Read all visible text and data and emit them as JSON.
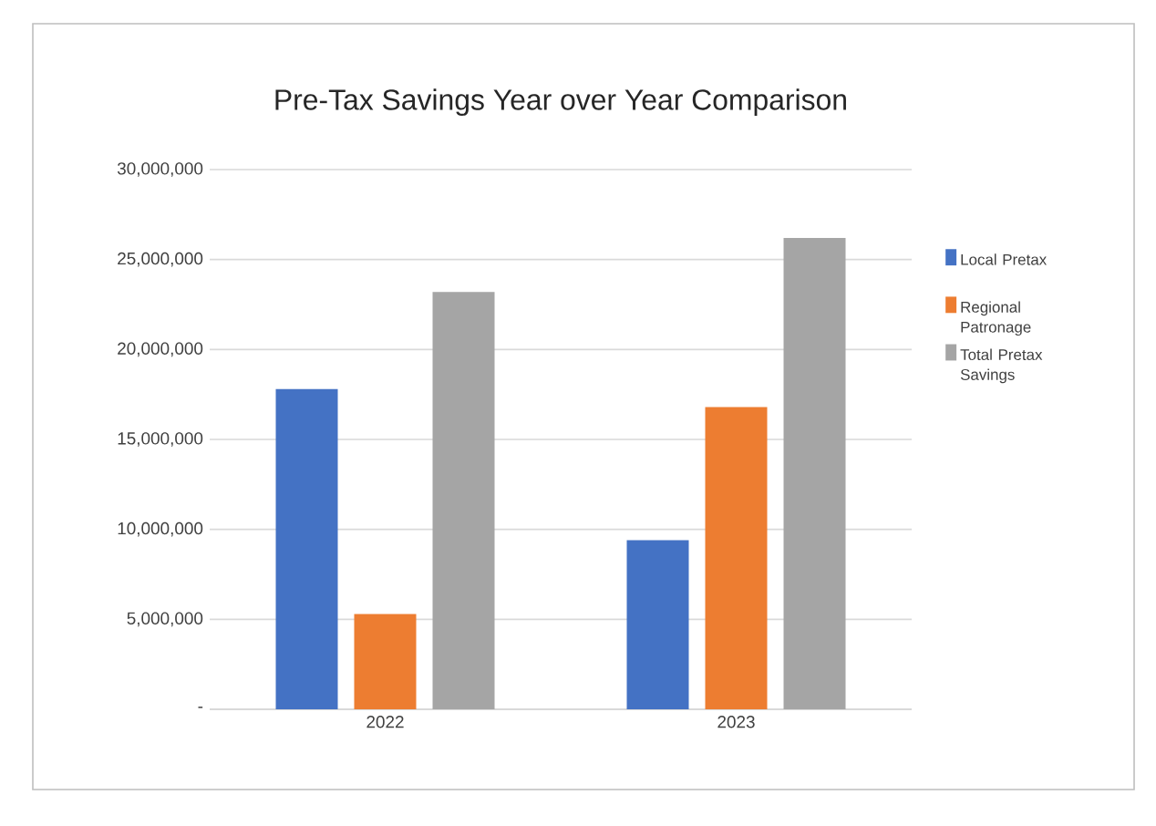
{
  "chart_data": {
    "type": "bar",
    "title": "Pre-Tax Savings Year over Year Comparison",
    "categories": [
      "2022",
      "2023"
    ],
    "series": [
      {
        "name": "Local Pretax",
        "color": "#4472c4",
        "values": [
          17800000,
          9400000
        ]
      },
      {
        "name": "Regional Patronage",
        "color": "#ed7d31",
        "values": [
          5300000,
          16800000
        ]
      },
      {
        "name": "Total Pretax Savings",
        "color": "#a5a5a5",
        "values": [
          23200000,
          26200000
        ]
      }
    ],
    "ylim": [
      0,
      30000000
    ],
    "yticks": [
      {
        "value": 0,
        "label": "-"
      },
      {
        "value": 5000000,
        "label": "5,000,000"
      },
      {
        "value": 10000000,
        "label": "10,000,000"
      },
      {
        "value": 15000000,
        "label": "15,000,000"
      },
      {
        "value": 20000000,
        "label": "20,000,000"
      },
      {
        "value": 25000000,
        "label": "25,000,000"
      },
      {
        "value": 30000000,
        "label": "30,000,000"
      }
    ],
    "grid": "y",
    "legend": "right"
  }
}
